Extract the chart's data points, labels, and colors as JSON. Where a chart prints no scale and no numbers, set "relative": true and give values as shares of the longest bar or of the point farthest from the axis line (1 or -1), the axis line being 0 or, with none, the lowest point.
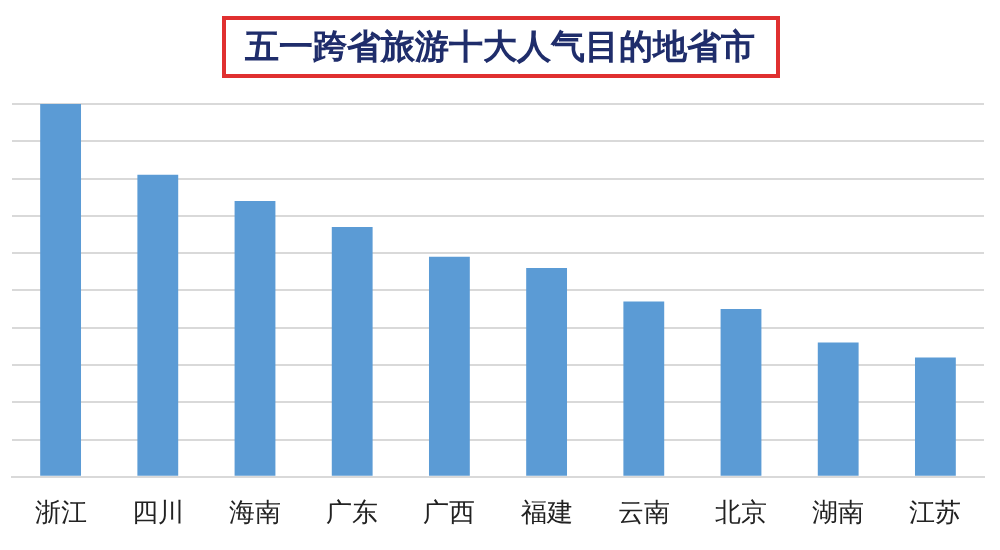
{
  "chart_data": {
    "type": "bar",
    "title": "五一跨省旅游十大人气目的地省市",
    "categories": [
      "浙江",
      "四川",
      "海南",
      "广东",
      "广西",
      "福建",
      "云南",
      "北京",
      "湖南",
      "江苏"
    ],
    "values": [
      1,
      0.81,
      0.74,
      0.67,
      0.59,
      0.56,
      0.47,
      0.45,
      0.36,
      0.32
    ],
    "color": "#5b9bd5",
    "relative": true,
    "grid": "y",
    "legend": false
  }
}
